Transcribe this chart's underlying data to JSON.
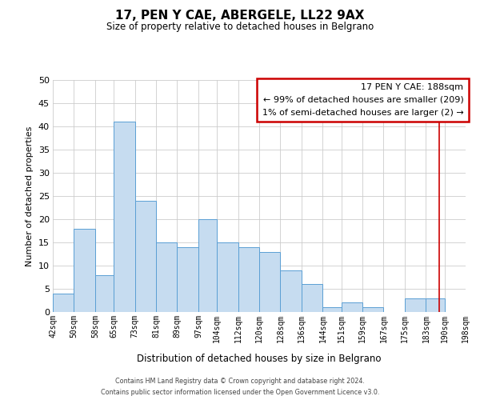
{
  "title": "17, PEN Y CAE, ABERGELE, LL22 9AX",
  "subtitle": "Size of property relative to detached houses in Belgrano",
  "xlabel": "Distribution of detached houses by size in Belgrano",
  "ylabel": "Number of detached properties",
  "bin_edges": [
    42,
    50,
    58,
    65,
    73,
    81,
    89,
    97,
    104,
    112,
    120,
    128,
    136,
    144,
    151,
    159,
    167,
    175,
    183,
    190,
    198
  ],
  "bar_heights": [
    4,
    18,
    8,
    41,
    24,
    15,
    14,
    20,
    15,
    14,
    13,
    9,
    6,
    1,
    2,
    1,
    0,
    3,
    3,
    0
  ],
  "bar_color": "#c6dcf0",
  "bar_edge_color": "#5a9fd4",
  "ylim": [
    0,
    50
  ],
  "yticks": [
    0,
    5,
    10,
    15,
    20,
    25,
    30,
    35,
    40,
    45,
    50
  ],
  "property_line_x": 188,
  "property_line_color": "#cc0000",
  "annotation_title": "17 PEN Y CAE: 188sqm",
  "annotation_line1": "← 99% of detached houses are smaller (209)",
  "annotation_line2": "1% of semi-detached houses are larger (2) →",
  "annotation_box_facecolor": "#ffffff",
  "annotation_box_edgecolor": "#cc0000",
  "footer_line1": "Contains HM Land Registry data © Crown copyright and database right 2024.",
  "footer_line2": "Contains public sector information licensed under the Open Government Licence v3.0.",
  "background_color": "#ffffff",
  "grid_color": "#cccccc"
}
